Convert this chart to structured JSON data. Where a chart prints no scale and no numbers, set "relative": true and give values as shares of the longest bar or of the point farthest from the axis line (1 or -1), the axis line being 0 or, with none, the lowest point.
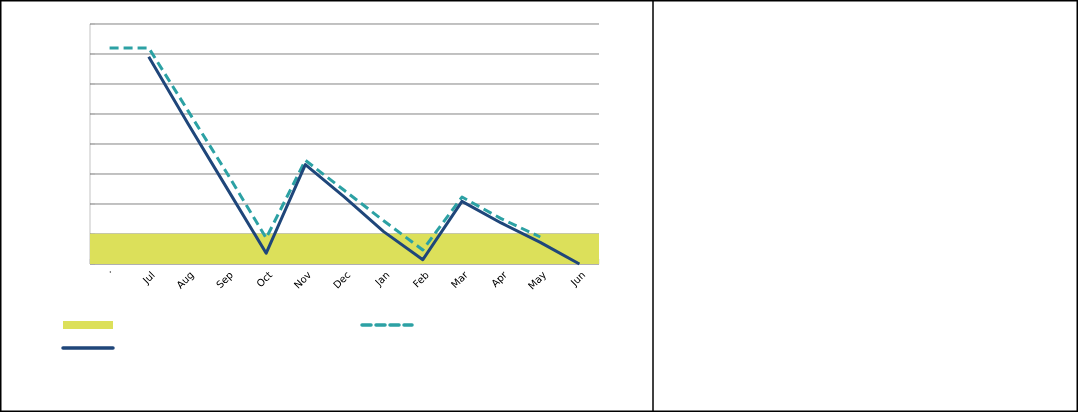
{
  "chart_data": {
    "type": "line",
    "relative": true,
    "categories": [
      ".",
      "Jul",
      "Aug",
      "Sep",
      "Oct",
      "Nov",
      "Dec",
      "Jan",
      "Feb",
      "Mar",
      "Apr",
      "May",
      "Jun"
    ],
    "series": [
      {
        "color": "#2ca1a4",
        "line_style": "dashed",
        "values": [
          1,
          1,
          0.71,
          0.42,
          0.12,
          0.48,
          0.34,
          0.2,
          0.065,
          0.31,
          0.21,
          0.125,
          null
        ]
      },
      {
        "color": "#1f467a",
        "line_style": "solid",
        "values": [
          null,
          0.96,
          0.65,
          0.35,
          0.05,
          0.46,
          0.31,
          0.15,
          0.02,
          0.29,
          0.19,
          0.1,
          0
        ]
      }
    ],
    "bands": [
      {
        "axis": "y",
        "from": 0,
        "to": 0.14,
        "color": "#dce05a"
      }
    ],
    "grid": "y"
  }
}
